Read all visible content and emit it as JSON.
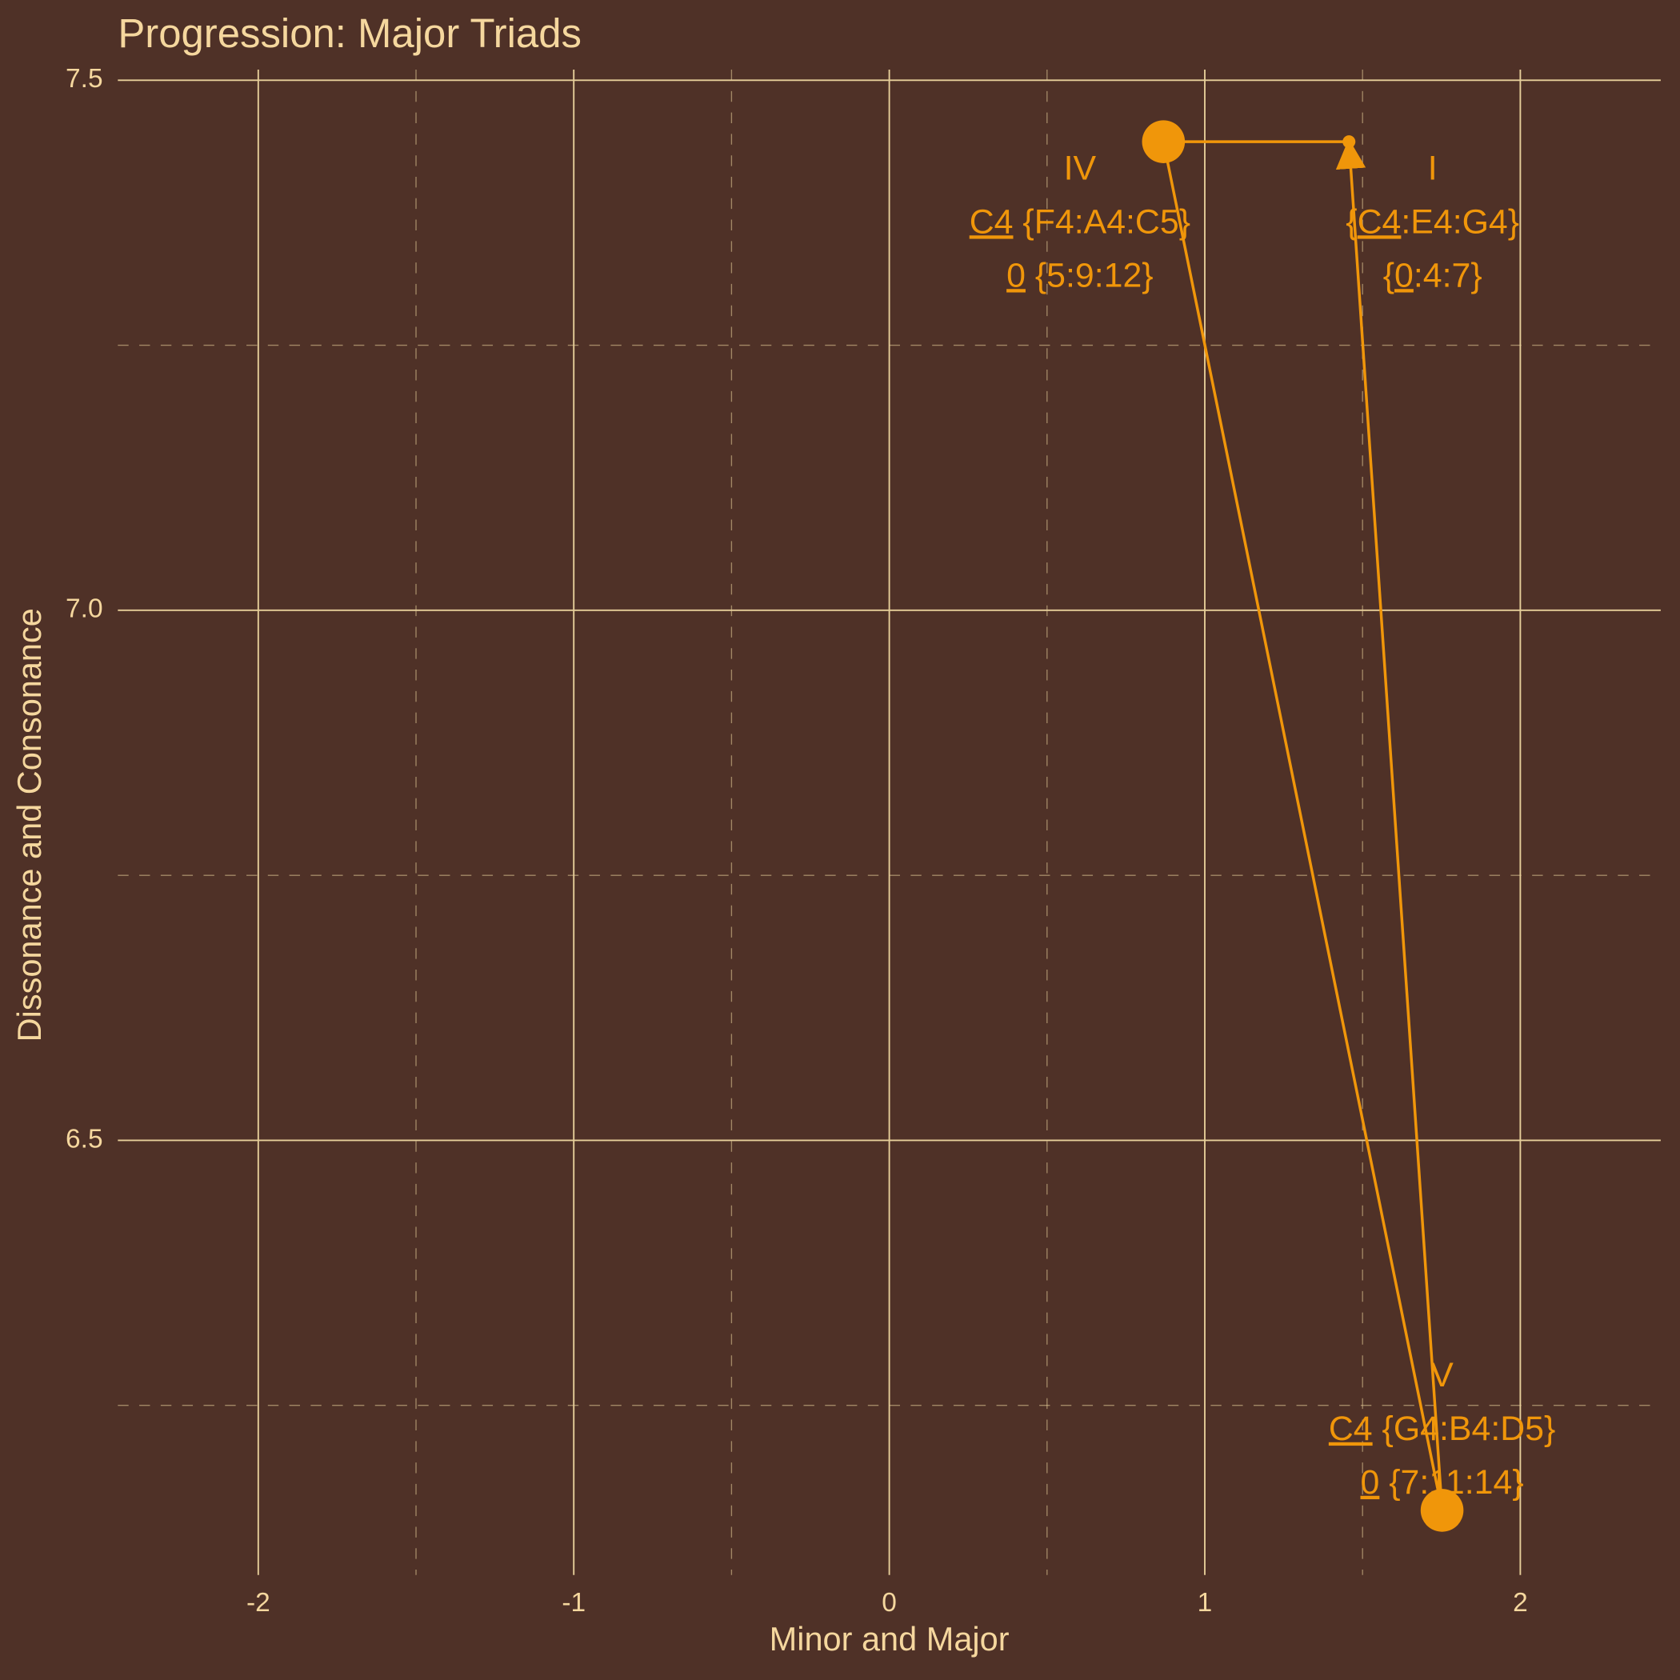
{
  "chart_data": {
    "type": "path",
    "title": "Progression: Major Triads",
    "x_label": "Minor and Major",
    "y_label": "Dissonance and Consonance",
    "xlim": [
      -2.445,
      2.445
    ],
    "ylim": [
      6.09,
      7.51
    ],
    "xticks": [
      -2,
      -1,
      0,
      1,
      2
    ],
    "yticks": [
      {
        "value": 6.5,
        "label": "6.5"
      },
      {
        "value": 7.0,
        "label": "7.0"
      },
      {
        "value": 7.5,
        "label": "7.5"
      }
    ],
    "x_minor_grid": [
      -1.5,
      -0.5,
      0.5,
      1.5
    ],
    "y_minor_grid": [
      6.25,
      6.75,
      7.25
    ],
    "color": "#f0960a",
    "x": [
      1.457,
      0.869,
      1.752,
      1.457
    ],
    "y": [
      7.442,
      7.442,
      6.151,
      7.442
    ],
    "labels": [
      {
        "numeral": "I",
        "line2": [
          {
            "text": "{"
          },
          {
            "text": "C4",
            "underline": true
          },
          {
            "text": ":E4:G4}"
          }
        ],
        "line3": [
          {
            "text": "{"
          },
          {
            "text": "0",
            "underline": true
          },
          {
            "text": ":4:7}"
          }
        ]
      },
      {
        "numeral": "IV",
        "line2": [
          {
            "text": "C4",
            "underline": true
          },
          {
            "text": " {F4:A4:C5}"
          }
        ],
        "line3": [
          {
            "text": "0",
            "underline": true
          },
          {
            "text": " {5:9:12}"
          }
        ]
      },
      {
        "numeral": "V",
        "line2": [
          {
            "text": "C4",
            "underline": true
          },
          {
            "text": " {G4:B4:D5}"
          }
        ],
        "line3": [
          {
            "text": "0",
            "underline": true
          },
          {
            "text": " {7:11:14}"
          }
        ]
      }
    ]
  }
}
